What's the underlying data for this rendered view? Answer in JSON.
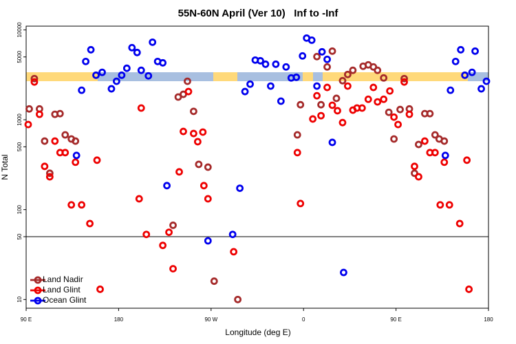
{
  "chart_data": {
    "type": "scatter",
    "title": "55N-60N April (Ver 10)   Inf to -Inf",
    "x_label": "Longitude (deg E)",
    "y_label": "N Total",
    "xlim": [
      90,
      540
    ],
    "xticks": [
      {
        "value": 90,
        "label": "90 E"
      },
      {
        "value": 180,
        "label": "180"
      },
      {
        "value": 270,
        "label": "90 W"
      },
      {
        "value": 360,
        "label": "0"
      },
      {
        "value": 450,
        "label": "90 E"
      },
      {
        "value": 540,
        "label": "180"
      }
    ],
    "ylim": [
      8,
      11000
    ],
    "yticks": [
      10,
      50,
      100,
      500,
      1000,
      5000,
      10000
    ],
    "y_log": true,
    "hline": 50,
    "legend": "bottom-left",
    "series": [
      {
        "name": "Land Nadir",
        "color": "#a52a2a",
        "x": [
          93,
          98,
          103,
          108,
          113,
          118,
          123,
          128,
          134,
          138,
          238,
          243,
          247,
          253,
          258,
          267,
          273,
          296,
          233,
          354,
          357,
          373,
          377,
          383,
          388,
          392,
          398,
          403,
          408,
          418,
          423,
          428,
          432,
          438,
          443,
          448,
          454,
          458,
          463,
          468,
          472,
          478,
          483,
          488,
          492,
          497
        ],
        "values": [
          1320,
          2870,
          1320,
          579,
          254,
          1150,
          1170,
          679,
          611,
          579,
          1790,
          1920,
          2680,
          1240,
          319,
          297,
          16,
          10,
          67,
          679,
          1470,
          5040,
          1470,
          3870,
          5800,
          1730,
          2720,
          3190,
          3550,
          3940,
          4080,
          3870,
          3550,
          2920,
          1210,
          611,
          1300,
          2870,
          1320,
          254,
          531,
          1170,
          1170,
          679,
          611,
          579
        ]
      },
      {
        "name": "Land Glint",
        "color": "#ee0000",
        "x": [
          92,
          98,
          103,
          108,
          113,
          118,
          123,
          128,
          134,
          138,
          144,
          152,
          159,
          162,
          200,
          202,
          207,
          223,
          229,
          233,
          239,
          243,
          248,
          253,
          257,
          262,
          263,
          267,
          292,
          354,
          357,
          369,
          373,
          377,
          383,
          388,
          393,
          398,
          403,
          408,
          412,
          417,
          423,
          428,
          432,
          438,
          444,
          448,
          452,
          458,
          463,
          468,
          472,
          478,
          483,
          488,
          493,
          497,
          502,
          512,
          519,
          521
        ],
        "values": [
          885,
          2630,
          1150,
          303,
          232,
          579,
          431,
          431,
          113,
          337,
          113,
          70,
          355,
          13,
          132,
          1350,
          53,
          40,
          56,
          22,
          263,
          741,
          2060,
          703,
          570,
          729,
          185,
          132,
          34,
          431,
          117,
          1020,
          1850,
          1110,
          2290,
          1450,
          1260,
          930,
          2370,
          1280,
          1350,
          1350,
          1690,
          2290,
          1580,
          1690,
          2090,
          1070,
          885,
          2630,
          1150,
          303,
          232,
          579,
          431,
          431,
          113,
          337,
          113,
          70,
          355,
          13
        ]
      },
      {
        "name": "Ocean Glint",
        "color": "#0000ee",
        "x": [
          139,
          144,
          148,
          153,
          158,
          164,
          173,
          178,
          183,
          188,
          193,
          198,
          202,
          209,
          213,
          218,
          223,
          227,
          267,
          291,
          298,
          303,
          308,
          313,
          318,
          323,
          328,
          333,
          338,
          343,
          348,
          353,
          359,
          363,
          368,
          373,
          378,
          383,
          388,
          399,
          498,
          503,
          508,
          513,
          517,
          524,
          527,
          533,
          538
        ],
        "values": [
          401,
          2130,
          4450,
          6010,
          3130,
          3370,
          2210,
          2680,
          3130,
          3740,
          6340,
          5600,
          3550,
          3080,
          7290,
          4450,
          4300,
          185,
          45,
          53,
          173,
          2060,
          2490,
          4610,
          4530,
          4150,
          2370,
          4150,
          1610,
          3870,
          2920,
          2970,
          5130,
          8100,
          7680,
          2370,
          5700,
          4700,
          560,
          20,
          401,
          2130,
          4450,
          6010,
          3130,
          3370,
          5800,
          2210,
          2680
        ]
      }
    ]
  }
}
